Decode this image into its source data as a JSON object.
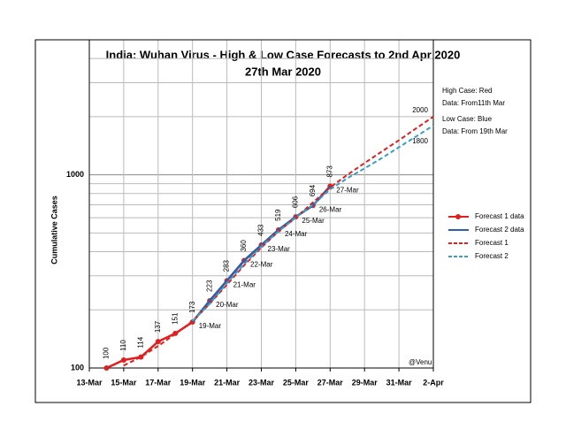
{
  "chart_data": {
    "type": "line",
    "title": "India: Wuhan Virus - High & Low Case Forecasts to 2nd Apr 2020",
    "subtitle": "27th Mar 2020",
    "y_label": "Cumulative Cases",
    "log_scale": true,
    "grid": true,
    "legend_position": "right",
    "categories": [
      "13-Mar",
      null,
      "15-Mar",
      null,
      "17-Mar",
      null,
      "19-Mar",
      null,
      "21-Mar",
      null,
      "23-Mar",
      null,
      "25-Mar",
      null,
      "27-Mar",
      null,
      "29-Mar",
      null,
      "31-Mar",
      null,
      "2-Apr"
    ],
    "ylim": [
      100,
      5000
    ],
    "yticks": [
      100,
      1000
    ],
    "y_minor_grid": [
      200,
      300,
      400,
      500,
      600,
      700,
      800,
      900,
      2000,
      3000,
      4000
    ],
    "series": [
      {
        "name": "Forecast 1 data",
        "color": "#e02020",
        "style": "solid",
        "marker": true,
        "data_labels": true,
        "values": [
          null,
          100,
          110,
          114,
          137,
          151,
          173,
          223,
          283,
          360,
          433,
          519,
          606,
          694,
          873,
          null,
          null,
          null,
          null,
          null,
          null
        ],
        "point_labels": [
          null,
          null,
          null,
          null,
          null,
          null,
          "19-Mar",
          "20-Mar",
          "21-Mar",
          "22-Mar",
          "23-Mar",
          "24-Mar",
          "25-Mar",
          "26-Mar",
          "27-Mar",
          null,
          null,
          null,
          null,
          null,
          null
        ]
      },
      {
        "name": "Forecast 2 data",
        "color": "#2e5fa8",
        "style": "solid",
        "values": [
          null,
          null,
          null,
          null,
          null,
          null,
          173,
          223,
          283,
          360,
          433,
          519,
          606,
          694,
          873,
          null,
          null,
          null,
          null,
          null,
          null
        ]
      },
      {
        "name": "Forecast 1",
        "color": "#e02020",
        "style": "dashed",
        "end_label": true,
        "values": [
          null,
          null,
          103,
          114,
          130,
          150,
          175,
          215,
          270,
          340,
          420,
          510,
          600,
          720,
          860,
          1000,
          1150,
          1320,
          1510,
          1740,
          2000
        ]
      },
      {
        "name": "Forecast 2",
        "color": "#3a9fc4",
        "style": "dashed",
        "end_label": true,
        "values": [
          null,
          null,
          null,
          null,
          null,
          null,
          175,
          215,
          275,
          345,
          425,
          510,
          600,
          700,
          840,
          960,
          1080,
          1220,
          1390,
          1580,
          1800
        ]
      }
    ],
    "annotations": [
      "High Case: Red",
      "Data: From11th Mar",
      "Low Case: Blue",
      "Data: From 19th Mar",
      "@Venu"
    ]
  }
}
